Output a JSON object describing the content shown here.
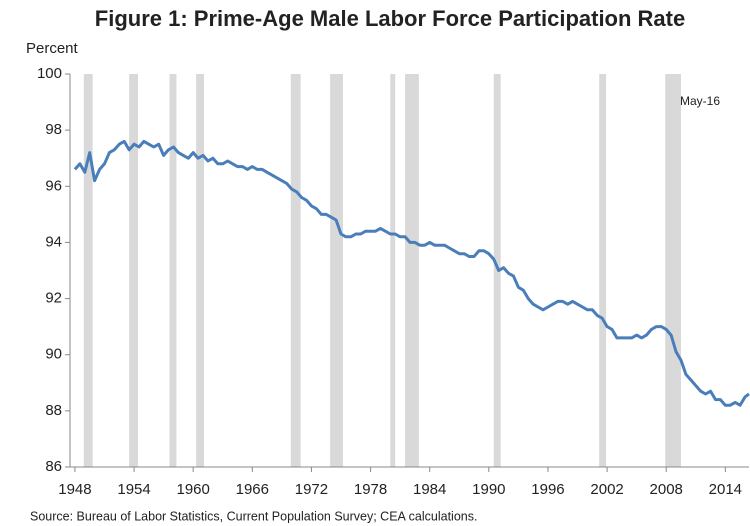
{
  "chart_data": {
    "type": "line",
    "title": "Figure 1: Prime-Age Male Labor Force Participation Rate",
    "y_label": "Percent",
    "annotation": "May-16",
    "source": "Source: Bureau of Labor Statistics, Current Population Survey; CEA calculations.",
    "xlim": [
      1947.5,
      2016.4
    ],
    "ylim": [
      86,
      100
    ],
    "xticks": [
      1948,
      1954,
      1960,
      1966,
      1972,
      1978,
      1984,
      1990,
      1996,
      2002,
      2008,
      2014
    ],
    "yticks": [
      86,
      88,
      90,
      92,
      94,
      96,
      98,
      100
    ],
    "grid": false,
    "recession_color": "#d9d9d9",
    "recessions": [
      [
        1948.9,
        1949.8
      ],
      [
        1953.5,
        1954.4
      ],
      [
        1957.6,
        1958.3
      ],
      [
        1960.3,
        1961.1
      ],
      [
        1969.9,
        1970.9
      ],
      [
        1973.9,
        1975.2
      ],
      [
        1980.0,
        1980.5
      ],
      [
        1981.5,
        1982.9
      ],
      [
        1990.5,
        1991.2
      ],
      [
        2001.2,
        2001.9
      ],
      [
        2007.9,
        2009.5
      ]
    ],
    "x": [
      1948,
      1948.5,
      1949,
      1949.5,
      1950,
      1950.5,
      1951,
      1951.5,
      1952,
      1952.5,
      1953,
      1953.5,
      1954,
      1954.5,
      1955,
      1955.5,
      1956,
      1956.5,
      1957,
      1957.5,
      1958,
      1958.5,
      1959,
      1959.5,
      1960,
      1960.5,
      1961,
      1961.5,
      1962,
      1962.5,
      1963,
      1963.5,
      1964,
      1964.5,
      1965,
      1965.5,
      1966,
      1966.5,
      1967,
      1967.5,
      1968,
      1968.5,
      1969,
      1969.5,
      1970,
      1970.5,
      1971,
      1971.5,
      1972,
      1972.5,
      1973,
      1973.5,
      1974,
      1974.5,
      1975,
      1975.5,
      1976,
      1976.5,
      1977,
      1977.5,
      1978,
      1978.5,
      1979,
      1979.5,
      1980,
      1980.5,
      1981,
      1981.5,
      1982,
      1982.5,
      1983,
      1983.5,
      1984,
      1984.5,
      1985,
      1985.5,
      1986,
      1986.5,
      1987,
      1987.5,
      1988,
      1988.5,
      1989,
      1989.5,
      1990,
      1990.5,
      1991,
      1991.5,
      1992,
      1992.5,
      1993,
      1993.5,
      1994,
      1994.5,
      1995,
      1995.5,
      1996,
      1996.5,
      1997,
      1997.5,
      1998,
      1998.5,
      1999,
      1999.5,
      2000,
      2000.5,
      2001,
      2001.5,
      2002,
      2002.5,
      2003,
      2003.5,
      2004,
      2004.5,
      2005,
      2005.5,
      2006,
      2006.5,
      2007,
      2007.5,
      2008,
      2008.5,
      2009,
      2009.5,
      2010,
      2010.5,
      2011,
      2011.5,
      2012,
      2012.5,
      2013,
      2013.5,
      2014,
      2014.5,
      2015,
      2015.5,
      2016,
      2016.4
    ],
    "series": [
      {
        "name": "Prime-Age Male Labor Force Participation Rate",
        "color": "#4a7ebb",
        "values": [
          96.6,
          96.8,
          96.5,
          97.2,
          96.2,
          96.6,
          96.8,
          97.2,
          97.3,
          97.5,
          97.6,
          97.3,
          97.5,
          97.4,
          97.6,
          97.5,
          97.4,
          97.5,
          97.1,
          97.3,
          97.4,
          97.2,
          97.1,
          97.0,
          97.2,
          97.0,
          97.1,
          96.9,
          97.0,
          96.8,
          96.8,
          96.9,
          96.8,
          96.7,
          96.7,
          96.6,
          96.7,
          96.6,
          96.6,
          96.5,
          96.4,
          96.3,
          96.2,
          96.1,
          95.9,
          95.8,
          95.6,
          95.5,
          95.3,
          95.2,
          95.0,
          95.0,
          94.9,
          94.8,
          94.3,
          94.2,
          94.2,
          94.3,
          94.3,
          94.4,
          94.4,
          94.4,
          94.5,
          94.4,
          94.3,
          94.3,
          94.2,
          94.2,
          94.0,
          94.0,
          93.9,
          93.9,
          94.0,
          93.9,
          93.9,
          93.9,
          93.8,
          93.7,
          93.6,
          93.6,
          93.5,
          93.5,
          93.7,
          93.7,
          93.6,
          93.4,
          93.0,
          93.1,
          92.9,
          92.8,
          92.4,
          92.3,
          92.0,
          91.8,
          91.7,
          91.6,
          91.7,
          91.8,
          91.9,
          91.9,
          91.8,
          91.9,
          91.8,
          91.7,
          91.6,
          91.6,
          91.4,
          91.3,
          91.0,
          90.9,
          90.6,
          90.6,
          90.6,
          90.6,
          90.7,
          90.6,
          90.7,
          90.9,
          91.0,
          91.0,
          90.9,
          90.7,
          90.1,
          89.8,
          89.3,
          89.1,
          88.9,
          88.7,
          88.6,
          88.7,
          88.4,
          88.4,
          88.2,
          88.2,
          88.3,
          88.2,
          88.5,
          88.6
        ]
      }
    ]
  }
}
